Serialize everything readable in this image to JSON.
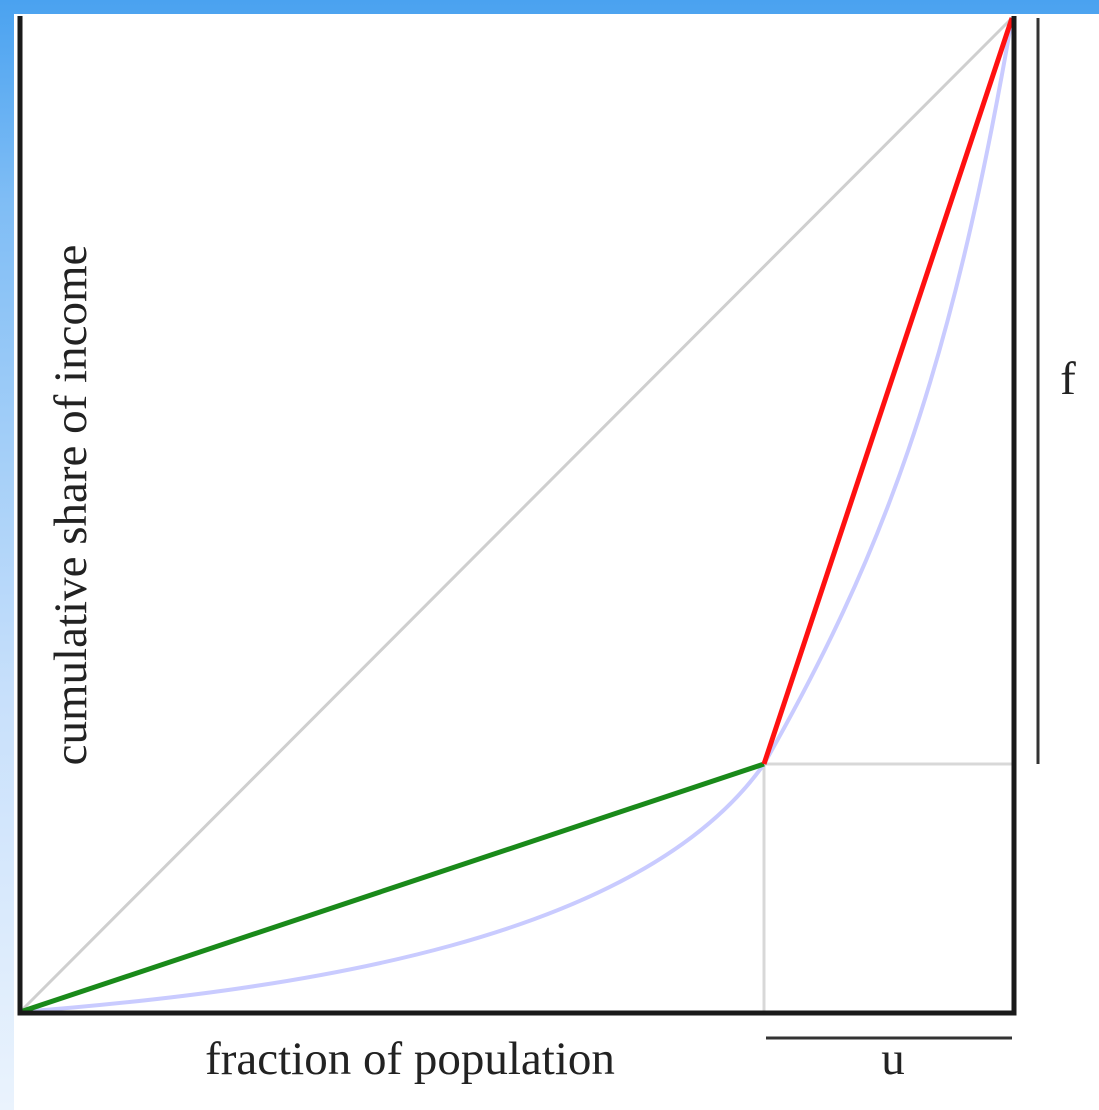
{
  "labels": {
    "y_axis": "cumulative share of income",
    "x_axis": "fraction of population",
    "u": "u",
    "f": "f"
  },
  "colors": {
    "equality_line": "#cfcfcf",
    "bottom_segment": "#1a8a1a",
    "top_segment": "#ff1111",
    "lorenz_curve": "#c9cbff",
    "guide_lines": "#d8d8d8",
    "frame": "#1a1a1a",
    "background_gradient_top": "#4aa2f0",
    "background_gradient_bottom": "#eaf3fd"
  },
  "model": {
    "population_share_u": 0.25,
    "income_share_f": 0.75
  }
}
